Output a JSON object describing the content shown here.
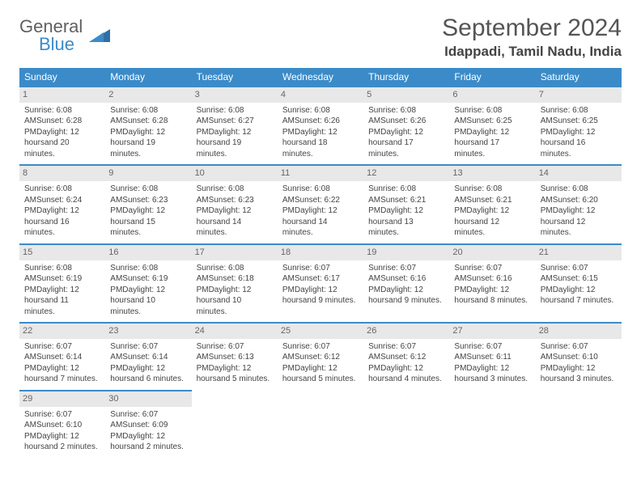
{
  "logo": {
    "line1": "General",
    "line2": "Blue"
  },
  "title": "September 2024",
  "location": "Idappadi, Tamil Nadu, India",
  "weekdays": [
    "Sunday",
    "Monday",
    "Tuesday",
    "Wednesday",
    "Thursday",
    "Friday",
    "Saturday"
  ],
  "colors": {
    "header_bg": "#3b8bc9",
    "header_text": "#ffffff",
    "daynum_bg": "#e8e8e8",
    "cell_border": "#3b8bc9",
    "logo_gray": "#606060",
    "logo_blue": "#3b8bc9"
  },
  "days": [
    {
      "n": "1",
      "sr": "Sunrise: 6:08 AM",
      "ss": "Sunset: 6:28 PM",
      "d1": "Daylight: 12 hours",
      "d2": "and 20 minutes."
    },
    {
      "n": "2",
      "sr": "Sunrise: 6:08 AM",
      "ss": "Sunset: 6:28 PM",
      "d1": "Daylight: 12 hours",
      "d2": "and 19 minutes."
    },
    {
      "n": "3",
      "sr": "Sunrise: 6:08 AM",
      "ss": "Sunset: 6:27 PM",
      "d1": "Daylight: 12 hours",
      "d2": "and 19 minutes."
    },
    {
      "n": "4",
      "sr": "Sunrise: 6:08 AM",
      "ss": "Sunset: 6:26 PM",
      "d1": "Daylight: 12 hours",
      "d2": "and 18 minutes."
    },
    {
      "n": "5",
      "sr": "Sunrise: 6:08 AM",
      "ss": "Sunset: 6:26 PM",
      "d1": "Daylight: 12 hours",
      "d2": "and 17 minutes."
    },
    {
      "n": "6",
      "sr": "Sunrise: 6:08 AM",
      "ss": "Sunset: 6:25 PM",
      "d1": "Daylight: 12 hours",
      "d2": "and 17 minutes."
    },
    {
      "n": "7",
      "sr": "Sunrise: 6:08 AM",
      "ss": "Sunset: 6:25 PM",
      "d1": "Daylight: 12 hours",
      "d2": "and 16 minutes."
    },
    {
      "n": "8",
      "sr": "Sunrise: 6:08 AM",
      "ss": "Sunset: 6:24 PM",
      "d1": "Daylight: 12 hours",
      "d2": "and 16 minutes."
    },
    {
      "n": "9",
      "sr": "Sunrise: 6:08 AM",
      "ss": "Sunset: 6:23 PM",
      "d1": "Daylight: 12 hours",
      "d2": "and 15 minutes."
    },
    {
      "n": "10",
      "sr": "Sunrise: 6:08 AM",
      "ss": "Sunset: 6:23 PM",
      "d1": "Daylight: 12 hours",
      "d2": "and 14 minutes."
    },
    {
      "n": "11",
      "sr": "Sunrise: 6:08 AM",
      "ss": "Sunset: 6:22 PM",
      "d1": "Daylight: 12 hours",
      "d2": "and 14 minutes."
    },
    {
      "n": "12",
      "sr": "Sunrise: 6:08 AM",
      "ss": "Sunset: 6:21 PM",
      "d1": "Daylight: 12 hours",
      "d2": "and 13 minutes."
    },
    {
      "n": "13",
      "sr": "Sunrise: 6:08 AM",
      "ss": "Sunset: 6:21 PM",
      "d1": "Daylight: 12 hours",
      "d2": "and 12 minutes."
    },
    {
      "n": "14",
      "sr": "Sunrise: 6:08 AM",
      "ss": "Sunset: 6:20 PM",
      "d1": "Daylight: 12 hours",
      "d2": "and 12 minutes."
    },
    {
      "n": "15",
      "sr": "Sunrise: 6:08 AM",
      "ss": "Sunset: 6:19 PM",
      "d1": "Daylight: 12 hours",
      "d2": "and 11 minutes."
    },
    {
      "n": "16",
      "sr": "Sunrise: 6:08 AM",
      "ss": "Sunset: 6:19 PM",
      "d1": "Daylight: 12 hours",
      "d2": "and 10 minutes."
    },
    {
      "n": "17",
      "sr": "Sunrise: 6:08 AM",
      "ss": "Sunset: 6:18 PM",
      "d1": "Daylight: 12 hours",
      "d2": "and 10 minutes."
    },
    {
      "n": "18",
      "sr": "Sunrise: 6:07 AM",
      "ss": "Sunset: 6:17 PM",
      "d1": "Daylight: 12 hours",
      "d2": "and 9 minutes."
    },
    {
      "n": "19",
      "sr": "Sunrise: 6:07 AM",
      "ss": "Sunset: 6:16 PM",
      "d1": "Daylight: 12 hours",
      "d2": "and 9 minutes."
    },
    {
      "n": "20",
      "sr": "Sunrise: 6:07 AM",
      "ss": "Sunset: 6:16 PM",
      "d1": "Daylight: 12 hours",
      "d2": "and 8 minutes."
    },
    {
      "n": "21",
      "sr": "Sunrise: 6:07 AM",
      "ss": "Sunset: 6:15 PM",
      "d1": "Daylight: 12 hours",
      "d2": "and 7 minutes."
    },
    {
      "n": "22",
      "sr": "Sunrise: 6:07 AM",
      "ss": "Sunset: 6:14 PM",
      "d1": "Daylight: 12 hours",
      "d2": "and 7 minutes."
    },
    {
      "n": "23",
      "sr": "Sunrise: 6:07 AM",
      "ss": "Sunset: 6:14 PM",
      "d1": "Daylight: 12 hours",
      "d2": "and 6 minutes."
    },
    {
      "n": "24",
      "sr": "Sunrise: 6:07 AM",
      "ss": "Sunset: 6:13 PM",
      "d1": "Daylight: 12 hours",
      "d2": "and 5 minutes."
    },
    {
      "n": "25",
      "sr": "Sunrise: 6:07 AM",
      "ss": "Sunset: 6:12 PM",
      "d1": "Daylight: 12 hours",
      "d2": "and 5 minutes."
    },
    {
      "n": "26",
      "sr": "Sunrise: 6:07 AM",
      "ss": "Sunset: 6:12 PM",
      "d1": "Daylight: 12 hours",
      "d2": "and 4 minutes."
    },
    {
      "n": "27",
      "sr": "Sunrise: 6:07 AM",
      "ss": "Sunset: 6:11 PM",
      "d1": "Daylight: 12 hours",
      "d2": "and 3 minutes."
    },
    {
      "n": "28",
      "sr": "Sunrise: 6:07 AM",
      "ss": "Sunset: 6:10 PM",
      "d1": "Daylight: 12 hours",
      "d2": "and 3 minutes."
    },
    {
      "n": "29",
      "sr": "Sunrise: 6:07 AM",
      "ss": "Sunset: 6:10 PM",
      "d1": "Daylight: 12 hours",
      "d2": "and 2 minutes."
    },
    {
      "n": "30",
      "sr": "Sunrise: 6:07 AM",
      "ss": "Sunset: 6:09 PM",
      "d1": "Daylight: 12 hours",
      "d2": "and 2 minutes."
    }
  ]
}
